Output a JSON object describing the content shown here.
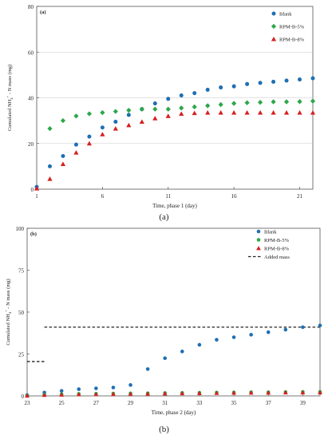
{
  "chart_data": [
    {
      "type": "scatter",
      "panel_tag": "(a)",
      "caption": "(a)",
      "xlabel": "Time,  phase 1 (day)",
      "ylabel": "Cumulated NH4+-N mass (mg)",
      "ylabel_parts": {
        "pre": "Cumulated NH",
        "sub": "4",
        "sup": "+",
        "post": " - N mass (mg)"
      },
      "xlim": [
        1,
        22
      ],
      "ylim": [
        0,
        80
      ],
      "xticks": [
        1,
        6,
        11,
        16,
        21
      ],
      "yticks": [
        0,
        20,
        40,
        60,
        80
      ],
      "legend_position": "top-right",
      "colors": {
        "blank": "#1f6fb4",
        "rpm5": "#2ca84a",
        "rpm8": "#d62020",
        "errorbar": "#888888"
      },
      "x": [
        1,
        2,
        3,
        4,
        5,
        6,
        7,
        8,
        9,
        10,
        11,
        12,
        13,
        14,
        15,
        16,
        17,
        18,
        19,
        20,
        21,
        22
      ],
      "series": [
        {
          "name": "Blank",
          "marker": "circle",
          "values": [
            1,
            10,
            14.5,
            19.5,
            23,
            27,
            29.5,
            32.5,
            35,
            37.5,
            39.5,
            41,
            42,
            43.5,
            44.5,
            45,
            46,
            46.5,
            47,
            47.5,
            48,
            48.5
          ]
        },
        {
          "name": "RPM-B-5%",
          "marker": "diamond",
          "values": [
            null,
            26.5,
            30,
            32,
            33,
            33.5,
            34,
            34.5,
            35,
            35,
            35,
            35.5,
            36,
            36.5,
            37,
            37.5,
            37.8,
            38,
            38.2,
            38.2,
            38.3,
            38.5
          ]
        },
        {
          "name": "RPM-B-8%",
          "marker": "triangle",
          "values": [
            0.3,
            4.5,
            11,
            16,
            20,
            24,
            26.5,
            28,
            29.5,
            31,
            32,
            33,
            33.3,
            33.5,
            33.5,
            33.5,
            33.5,
            33.5,
            33.5,
            33.5,
            33.5,
            33.5
          ]
        }
      ]
    },
    {
      "type": "scatter",
      "panel_tag": "(b)",
      "caption": "(b)",
      "xlabel": "Time,  phase 2 (day)",
      "ylabel": "Cumulated NH4+-N mass (mg)",
      "ylabel_parts": {
        "pre": "Cumulated NH",
        "sub": "4",
        "sup": "+",
        "post": " - N mass (mg)"
      },
      "xlim": [
        23,
        40
      ],
      "ylim": [
        0,
        100
      ],
      "xticks": [
        23,
        25,
        27,
        29,
        31,
        33,
        35,
        37,
        39
      ],
      "yticks": [
        0,
        25,
        50,
        75,
        100
      ],
      "legend_position": "top-right",
      "colors": {
        "blank": "#1f6fb4",
        "rpm5": "#2ca84a",
        "rpm8": "#d62020",
        "errorbar": "#888888",
        "added": "#222222"
      },
      "x": [
        23,
        24,
        25,
        26,
        27,
        28,
        29,
        30,
        31,
        32,
        33,
        34,
        35,
        36,
        37,
        38,
        39,
        40
      ],
      "series": [
        {
          "name": "Blank",
          "marker": "circle",
          "values": [
            0.5,
            2,
            3,
            4,
            4.5,
            5,
            6.5,
            16,
            22.5,
            26.5,
            30.5,
            33.5,
            35,
            36.5,
            38,
            39.5,
            41,
            42
          ]
        },
        {
          "name": "RPM-B-5%",
          "marker": "circle",
          "values": [
            0.2,
            0.8,
            1,
            1.2,
            1.3,
            1.4,
            1.5,
            1.6,
            1.7,
            1.8,
            1.9,
            2,
            2.1,
            2.2,
            2.2,
            2.3,
            2.4,
            2.4
          ]
        },
        {
          "name": "RPM-B-8%",
          "marker": "triangle",
          "values": [
            0.1,
            0.5,
            0.7,
            0.9,
            1,
            1.1,
            1.2,
            1.3,
            1.4,
            1.5,
            1.6,
            1.7,
            1.8,
            1.9,
            1.9,
            2,
            2,
            2
          ]
        }
      ],
      "added_mass": {
        "name": "Added mass",
        "segments": [
          {
            "x": [
              23,
              24
            ],
            "y": 20.5
          },
          {
            "x": [
              24,
              40
            ],
            "y": 41
          }
        ]
      }
    }
  ]
}
